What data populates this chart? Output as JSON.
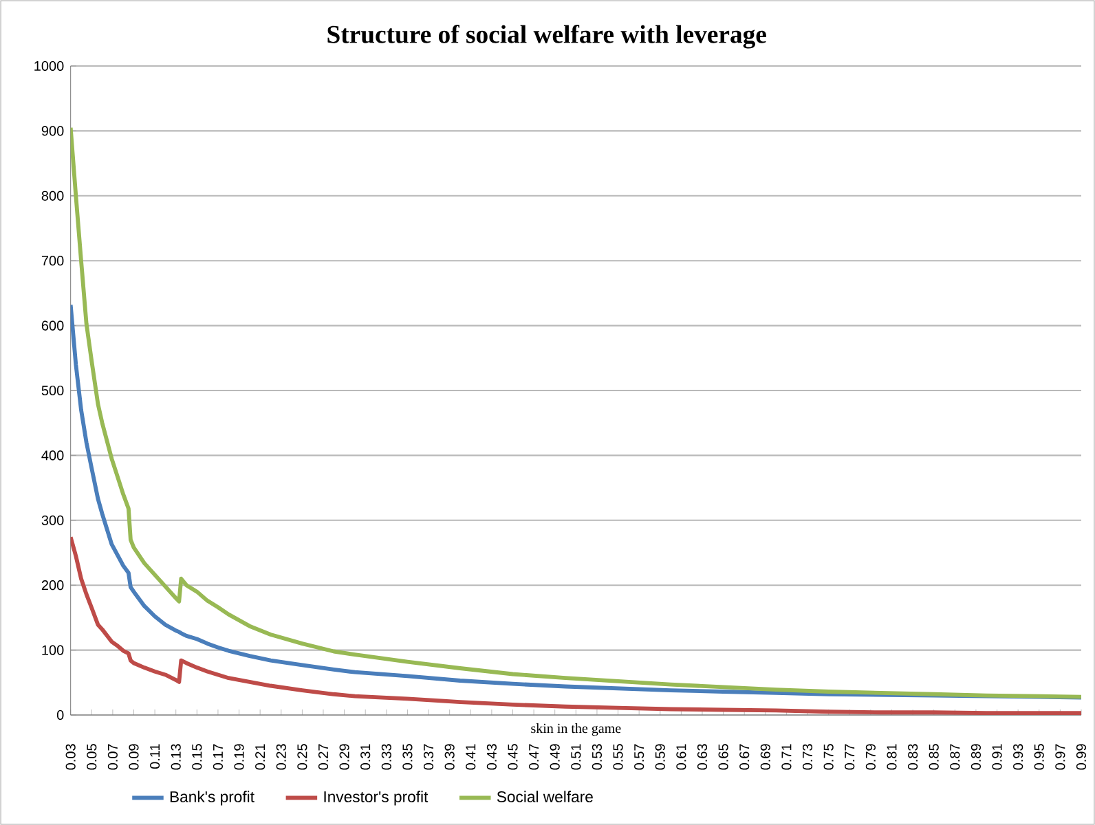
{
  "chart_data": {
    "type": "line",
    "title": "Structure of social welfare with leverage",
    "xlabel": "skin in the game",
    "x": [
      0.03,
      0.035,
      0.04,
      0.045,
      0.05,
      0.056,
      0.06,
      0.069,
      0.075,
      0.08,
      0.085,
      0.087,
      0.09,
      0.1,
      0.11,
      0.12,
      0.13,
      0.133,
      0.135,
      0.14,
      0.15,
      0.16,
      0.17,
      0.18,
      0.2,
      0.22,
      0.25,
      0.28,
      0.3,
      0.35,
      0.4,
      0.45,
      0.5,
      0.55,
      0.6,
      0.65,
      0.7,
      0.75,
      0.8,
      0.85,
      0.9,
      0.95,
      0.99
    ],
    "series": [
      {
        "name": "Bank's profit",
        "color": "#4a7ebb",
        "values": [
          632,
          540,
          470,
          420,
          380,
          333,
          310,
          263,
          245,
          230,
          219,
          197,
          190,
          168,
          152,
          139,
          130,
          128,
          126,
          122,
          117,
          110,
          104,
          99,
          91,
          84,
          77,
          70,
          66,
          60,
          53,
          48,
          44,
          41,
          38,
          36,
          34,
          32,
          31,
          30,
          29,
          28,
          27
        ]
      },
      {
        "name": "Investor's profit",
        "color": "#be4b48",
        "values": [
          274,
          245,
          210,
          186,
          165,
          139,
          132,
          113,
          106,
          99,
          95,
          84,
          80,
          73,
          67,
          62,
          54,
          51,
          84,
          80,
          73,
          67,
          62,
          57,
          51,
          45,
          38,
          32,
          29,
          25,
          20,
          16,
          13,
          11,
          9,
          8,
          7,
          5,
          4,
          4,
          3,
          3,
          3
        ]
      },
      {
        "name": "Social welfare",
        "color": "#98b954",
        "values": [
          905,
          800,
          700,
          603,
          545,
          479,
          450,
          395,
          365,
          340,
          318,
          270,
          258,
          234,
          216,
          198,
          180,
          175,
          210,
          200,
          190,
          176,
          166,
          155,
          137,
          124,
          110,
          98,
          93,
          82,
          72,
          63,
          57,
          52,
          47,
          43,
          39,
          36,
          34,
          32,
          30,
          29,
          28
        ]
      }
    ],
    "xlim": [
      0.03,
      0.99
    ],
    "xticks": [
      0.03,
      0.05,
      0.07,
      0.09,
      0.11,
      0.13,
      0.15,
      0.17,
      0.19,
      0.21,
      0.23,
      0.25,
      0.27,
      0.29,
      0.31,
      0.33,
      0.35,
      0.37,
      0.39,
      0.41,
      0.43,
      0.45,
      0.47,
      0.49,
      0.51,
      0.53,
      0.55,
      0.57,
      0.59,
      0.61,
      0.63,
      0.65,
      0.67,
      0.69,
      0.71,
      0.73,
      0.75,
      0.77,
      0.79,
      0.81,
      0.83,
      0.85,
      0.87,
      0.89,
      0.91,
      0.93,
      0.95,
      0.97,
      0.99
    ],
    "ylim": [
      0,
      1000
    ],
    "yticks": [
      0,
      100,
      200,
      300,
      400,
      500,
      600,
      700,
      800,
      900,
      1000
    ],
    "grid": "y",
    "legend": "bottom",
    "marker": "none",
    "line_style": "solid"
  }
}
